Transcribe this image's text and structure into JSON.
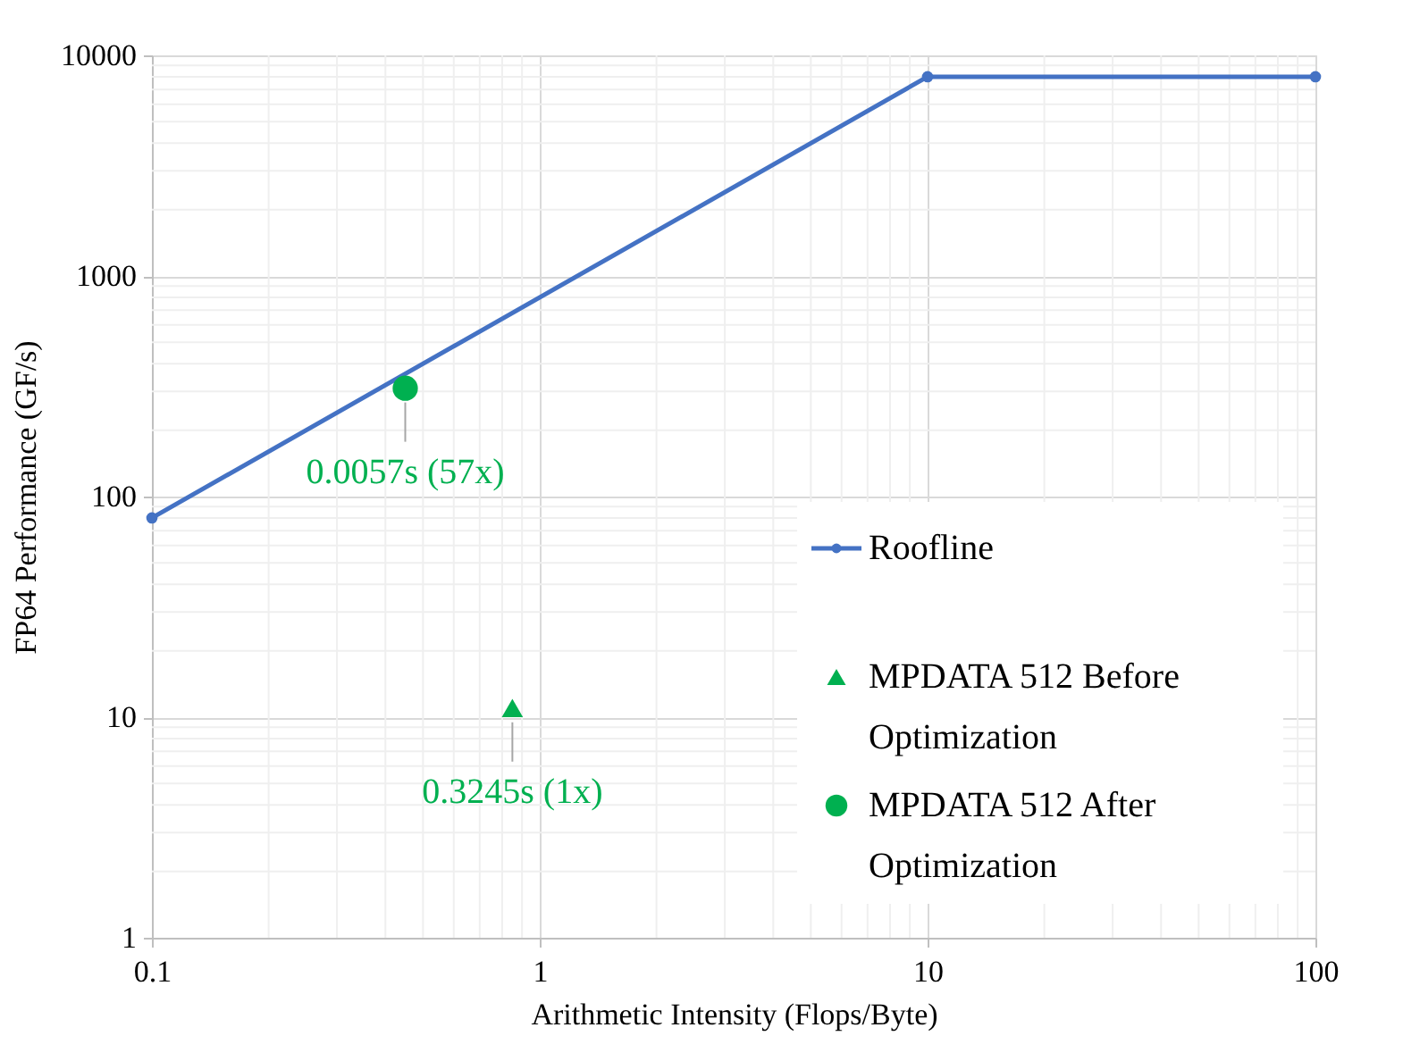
{
  "chart_data": {
    "type": "line",
    "xlabel": "Arithmetic Intensity (Flops/Byte)",
    "ylabel": "FP64 Performance (GF/s)",
    "log": "xy",
    "xlim": [
      0.1,
      100
    ],
    "ylim": [
      1,
      10000
    ],
    "xticks": [
      0.1,
      1,
      10,
      100
    ],
    "yticks": [
      1,
      10,
      100,
      1000,
      10000
    ],
    "grid": true,
    "legend": "right",
    "series": [
      {
        "name": "Roofline",
        "type": "line",
        "marker": "circle",
        "color": "#4472c4",
        "x": [
          0.1,
          10,
          100
        ],
        "values": [
          80,
          8000,
          8000
        ]
      },
      {
        "name": "MPDATA 512 Before Optimization",
        "type": "scatter",
        "marker": "triangle",
        "color": "#00b050",
        "x": [
          0.85
        ],
        "values": [
          11
        ]
      },
      {
        "name": "MPDATA 512 After Optimization",
        "type": "scatter",
        "marker": "circle",
        "color": "#00b050",
        "x": [
          0.45
        ],
        "values": [
          310
        ]
      }
    ],
    "annotations": [
      {
        "text": "0.0057s (57x)",
        "x": 0.45,
        "y": 310
      },
      {
        "text": "0.3245s (1x)",
        "x": 0.85,
        "y": 11
      }
    ]
  }
}
